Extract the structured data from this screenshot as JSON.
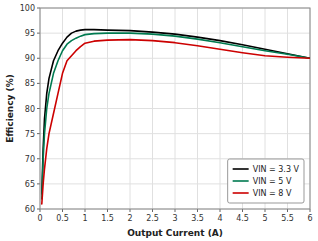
{
  "chart_data": {
    "type": "line",
    "xlabel": "Output Current (A)",
    "ylabel": "Efficiency (%)",
    "x": [
      0.04,
      0.07,
      0.1,
      0.15,
      0.2,
      0.3,
      0.4,
      0.5,
      0.6,
      0.7,
      0.8,
      0.9,
      1.0,
      1.2,
      1.5,
      2.0,
      2.5,
      3.0,
      3.5,
      4.0,
      4.5,
      5.0,
      5.5,
      6.0
    ],
    "series": [
      {
        "name": "VIN = 3.3 V",
        "color": "#000000",
        "values": [
          63,
          72,
          78,
          83,
          86,
          89.5,
          91.5,
          93.0,
          94.2,
          95.0,
          95.4,
          95.6,
          95.7,
          95.7,
          95.6,
          95.5,
          95.2,
          94.8,
          94.2,
          93.5,
          92.7,
          91.8,
          90.9,
          90.0
        ]
      },
      {
        "name": "VIN = 5 V",
        "color": "#007a50",
        "values": [
          62,
          70,
          75,
          80,
          83,
          87,
          89.5,
          91.5,
          92.8,
          93.5,
          94.0,
          94.4,
          94.7,
          94.9,
          95.0,
          95.0,
          94.8,
          94.4,
          93.8,
          93.1,
          92.3,
          91.5,
          90.8,
          90.0
        ]
      },
      {
        "name": "VIN = 8 V",
        "color": "#cc0000",
        "values": [
          61,
          65,
          68,
          72,
          75,
          79,
          83,
          87,
          89.5,
          90.5,
          91.5,
          92.3,
          93.0,
          93.4,
          93.6,
          93.7,
          93.5,
          93.1,
          92.5,
          91.8,
          91.1,
          90.5,
          90.2,
          90.0
        ]
      }
    ],
    "xlim": [
      0,
      6
    ],
    "ylim": [
      60,
      100
    ],
    "xticks": [
      0,
      0.5,
      1,
      1.5,
      2,
      2.5,
      3,
      3.5,
      4,
      4.5,
      5,
      5.5,
      6
    ],
    "yticks": [
      60,
      65,
      70,
      75,
      80,
      85,
      90,
      95,
      100
    ],
    "grid": true,
    "legend": "lower-right"
  }
}
